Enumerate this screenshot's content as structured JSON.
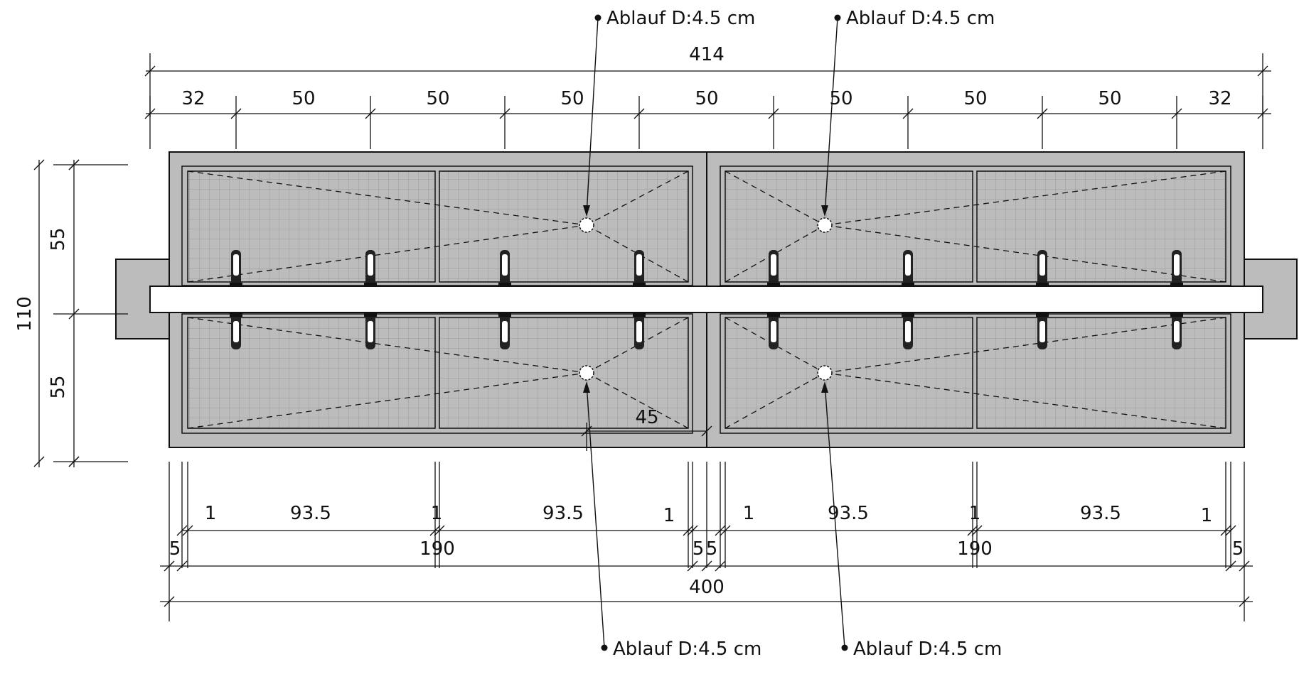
{
  "drawing": {
    "dim_top_total": "414",
    "dim_top_segments": [
      "32",
      "50",
      "50",
      "50",
      "50",
      "50",
      "50",
      "50",
      "32"
    ],
    "dim_height_total": "110",
    "dim_height_upper": "55",
    "dim_height_lower": "55",
    "dim_slope_offset": "45",
    "dim_bottom_total": "400",
    "dim_bottom_row2": [
      "5",
      "190",
      "5",
      "5",
      "190",
      "5"
    ],
    "dim_bottom_row1": [
      "1",
      "93.5",
      "1",
      "93.5",
      "1",
      "1",
      "93.5",
      "1",
      "93.5",
      "1"
    ],
    "drain_label": "Ablauf D:4.5 cm"
  },
  "colors": {
    "concrete": "#bcbcbc",
    "line": "#111111",
    "grid": "#9a9a9a"
  }
}
